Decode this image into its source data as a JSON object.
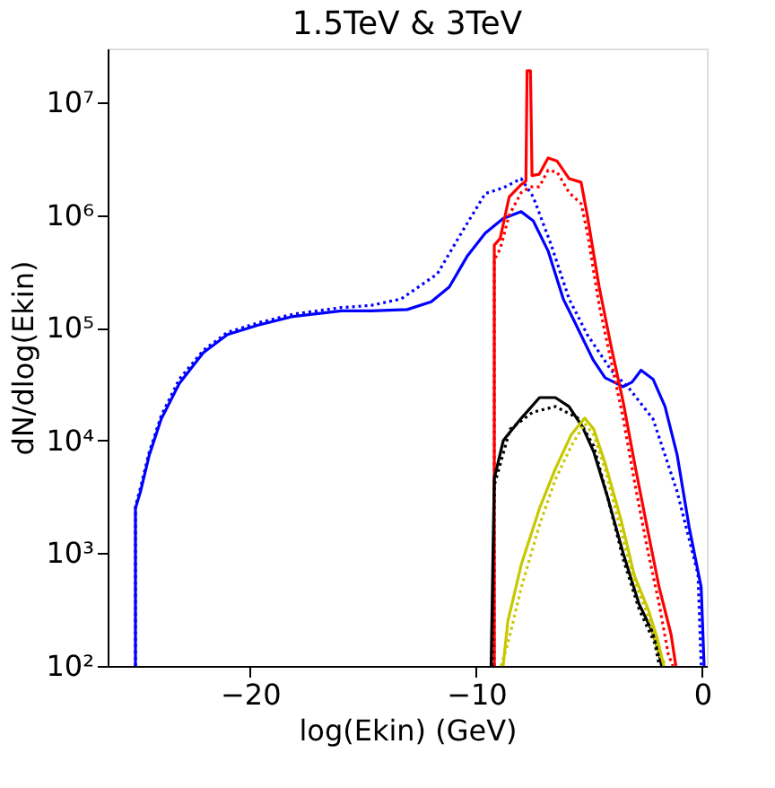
{
  "chart_data": {
    "type": "line",
    "title": "1.5TeV & 3TeV",
    "xlabel": "log(Ekin) (GeV)",
    "ylabel": "dN/dlog(Ekin)",
    "log": "y",
    "grid": false,
    "legend": false,
    "marker": "none",
    "xlim": [
      -26.3,
      0.2
    ],
    "xticks": [
      {
        "value": -20,
        "label": "−20"
      },
      {
        "value": -10,
        "label": "−10"
      },
      0
    ],
    "ylim": [
      100,
      30000000
    ],
    "yticks": [
      {
        "value": 100,
        "label": "10²"
      },
      {
        "value": 1000,
        "label": "10³"
      },
      {
        "value": 10000,
        "label": "10⁴"
      },
      {
        "value": 100000,
        "label": "10⁵"
      },
      {
        "value": 1000000,
        "label": "10⁶"
      },
      {
        "value": 10000000,
        "label": "10⁷"
      }
    ],
    "series": [
      {
        "color": "#0000ff",
        "line_style": "solid",
        "x": [
          -25.07,
          -25.07,
          -24.85,
          -24.46,
          -23.93,
          -23.13,
          -22.07,
          -21.0,
          -19.68,
          -18.09,
          -15.97,
          -14.64,
          -13.05,
          -11.99,
          -11.19,
          -10.4,
          -9.6,
          -8.81,
          -8.01,
          -7.48,
          -6.82,
          -6.15,
          -5.62,
          -4.83,
          -4.3,
          -3.5,
          -3.1,
          -2.71,
          -2.18,
          -1.65,
          -1.11,
          -0.58,
          -0.05,
          0.08
        ],
        "values": [
          100,
          2500,
          3500,
          7400,
          15500,
          32000,
          60000,
          87000,
          105000,
          126000,
          141000,
          141000,
          145000,
          170000,
          230000,
          430000,
          690000,
          930000,
          1070000,
          890000,
          480000,
          180000,
          110000,
          52000,
          36000,
          30000,
          33000,
          42000,
          35000,
          20000,
          7400,
          1700,
          500,
          100
        ]
      },
      {
        "color": "#0000ff",
        "line_style": "dotted",
        "x": [
          -25.07,
          -25.07,
          -24.85,
          -24.46,
          -23.93,
          -23.13,
          -22.07,
          -21.0,
          -19.68,
          -18.09,
          -15.97,
          -14.64,
          -13.32,
          -11.72,
          -10.66,
          -9.6,
          -8.81,
          -8.01,
          -7.48,
          -6.68,
          -5.89,
          -5.09,
          -4.03,
          -3.24,
          -2.18,
          -1.11,
          -0.19,
          -0.05
        ],
        "values": [
          100,
          2600,
          3800,
          7900,
          16600,
          35000,
          63000,
          91000,
          110000,
          132000,
          151000,
          158000,
          180000,
          300000,
          690000,
          1550000,
          1740000,
          2100000,
          1450000,
          540000,
          180000,
          87000,
          42000,
          29000,
          15500,
          3500,
          650,
          100
        ]
      },
      {
        "color": "#ff0000",
        "line_style": "solid",
        "x": [
          -9.2,
          -9.2,
          -8.94,
          -8.54,
          -8.01,
          -7.8,
          -7.75,
          -7.6,
          -7.53,
          -7.21,
          -6.82,
          -6.42,
          -5.89,
          -5.36,
          -5.09,
          -4.56,
          -4.03,
          -3.5,
          -2.97,
          -2.44,
          -1.91,
          -1.38,
          -1.17
        ],
        "values": [
          100,
          540000,
          620000,
          1450000,
          1860000,
          2000000,
          19000000,
          19000000,
          2240000,
          2300000,
          3200000,
          3000000,
          2100000,
          1950000,
          1000000,
          230000,
          68000,
          22000,
          5900,
          1700,
          500,
          190,
          100
        ]
      },
      {
        "color": "#ff0000",
        "line_style": "dotted",
        "x": [
          -9.2,
          -9.2,
          -8.94,
          -8.54,
          -8.01,
          -7.6,
          -7.21,
          -6.82,
          -6.42,
          -5.89,
          -5.36,
          -5.09,
          -4.56,
          -4.03,
          -3.5,
          -2.97,
          -2.44,
          -1.91,
          -1.5,
          -1.3
        ],
        "values": [
          100,
          400000,
          500000,
          1000000,
          1580000,
          1780000,
          1780000,
          2500000,
          2400000,
          1580000,
          1260000,
          710000,
          158000,
          50000,
          15800,
          4000,
          1120,
          355,
          126,
          100
        ]
      },
      {
        "color": "#000000",
        "line_style": "solid",
        "x": [
          -9.34,
          -9.2,
          -8.8,
          -8.0,
          -7.2,
          -6.5,
          -5.9,
          -5.3,
          -4.8,
          -4.2,
          -3.5,
          -2.8,
          -2.2,
          -1.9,
          -1.8
        ],
        "values": [
          100,
          4600,
          10000,
          15800,
          24000,
          24000,
          20000,
          13200,
          7900,
          3200,
          1000,
          355,
          200,
          126,
          100
        ]
      },
      {
        "color": "#000000",
        "line_style": "dotted",
        "x": [
          -9.3,
          -9.2,
          -8.5,
          -7.5,
          -6.5,
          -5.5,
          -4.8,
          -4.2,
          -3.5,
          -2.8,
          -2.1,
          -1.9
        ],
        "values": [
          100,
          4000,
          12600,
          17800,
          20000,
          15800,
          8900,
          3200,
          890,
          320,
          158,
          100
        ]
      },
      {
        "color": "#c8c800",
        "line_style": "solid",
        "x": [
          -8.81,
          -8.6,
          -8.0,
          -7.2,
          -6.5,
          -5.8,
          -5.2,
          -4.8,
          -4.3,
          -3.6,
          -3.0,
          -2.4,
          -2.0,
          -1.7
        ],
        "values": [
          100,
          250,
          800,
          2500,
          5600,
          11200,
          15800,
          12600,
          6300,
          2000,
          630,
          320,
          178,
          100
        ]
      },
      {
        "color": "#c8c800",
        "line_style": "dotted",
        "x": [
          -8.9,
          -8.6,
          -8.0,
          -7.2,
          -6.5,
          -5.8,
          -5.2,
          -4.8,
          -4.3,
          -3.6,
          -3.0,
          -2.4,
          -1.9,
          -1.6
        ],
        "values": [
          100,
          158,
          500,
          1780,
          4500,
          8900,
          14100,
          11200,
          5600,
          1580,
          560,
          280,
          126,
          100
        ]
      }
    ]
  }
}
